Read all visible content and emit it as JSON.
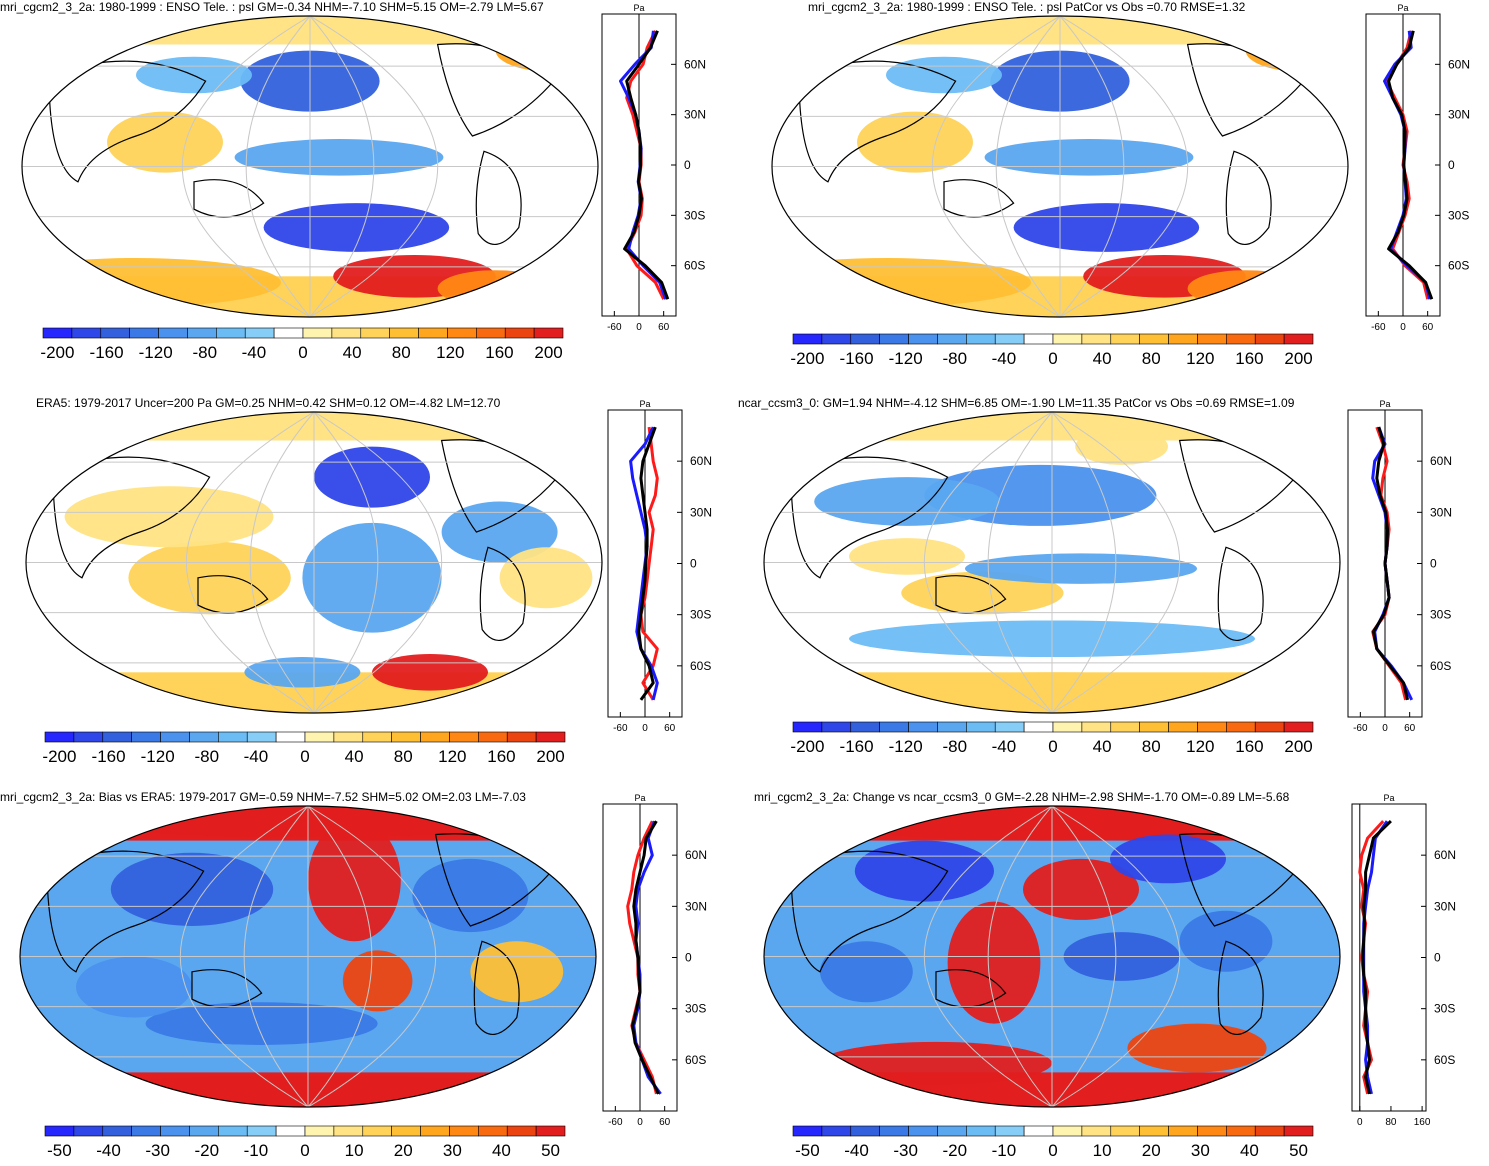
{
  "colors": {
    "scale": [
      "#2626ff",
      "#2f46e8",
      "#3361dd",
      "#3a79e6",
      "#4b91ee",
      "#5aa7f0",
      "#6bbcf5",
      "#86cdf7",
      "#ffffff",
      "#fff3b0",
      "#ffe384",
      "#ffd35a",
      "#ffbf35",
      "#ffa51e",
      "#ff8714",
      "#f96a10",
      "#ec4410",
      "#e21e1e"
    ],
    "land": "#000000",
    "grid": "#c8c8c8",
    "model_line": "#ff1a1a",
    "obs_line": "#1a1aff",
    "ref_line": "#000000"
  },
  "chart_data": [
    {
      "type": "heatmap",
      "title": "mri_cgcm2_3_2a: 1980-1999 : ENSO Tele. : psl GM=-0.34 NHM=-7.10 SHM=5.15 OM=-2.79 LM=5.67",
      "colorbar_ticks": [
        "-200",
        "-160",
        "-120",
        "-80",
        "-40",
        "0",
        "40",
        "80",
        "120",
        "160",
        "200"
      ],
      "profile_unit": "Pa",
      "profile_yticks": [
        "60N",
        "30N",
        "0",
        "30S",
        "60S"
      ],
      "profile_xticks": [
        "-60",
        "0",
        "60"
      ],
      "profile_xlim": [
        -90,
        90
      ],
      "latitudes": [
        80,
        70,
        60,
        50,
        40,
        30,
        20,
        10,
        0,
        -10,
        -20,
        -30,
        -40,
        -50,
        -60,
        -70,
        -80
      ],
      "series": [
        {
          "name": "model",
          "values": [
            40,
            20,
            10,
            -20,
            -30,
            -15,
            -5,
            5,
            5,
            0,
            8,
            5,
            -10,
            -30,
            -5,
            40,
            60
          ]
        },
        {
          "name": "obs",
          "values": [
            35,
            30,
            -10,
            -45,
            -25,
            -8,
            0,
            5,
            3,
            -2,
            5,
            -2,
            -15,
            -25,
            10,
            50,
            65
          ]
        },
        {
          "name": "reference",
          "values": [
            45,
            28,
            0,
            -30,
            -20,
            -8,
            0,
            4,
            4,
            -1,
            6,
            0,
            -12,
            -35,
            15,
            55,
            70
          ]
        }
      ]
    },
    {
      "type": "heatmap",
      "title": "mri_cgcm2_3_2a: 1980-1999 : ENSO Tele. : psl PatCor vs Obs =0.70 RMSE=1.32",
      "colorbar_ticks": [
        "-200",
        "-160",
        "-120",
        "-80",
        "-40",
        "0",
        "40",
        "80",
        "120",
        "160",
        "200"
      ],
      "profile_unit": "Pa",
      "profile_yticks": [
        "60N",
        "30N",
        "0",
        "30S",
        "60S"
      ],
      "profile_xticks": [
        "-60",
        "0",
        "60"
      ],
      "profile_xlim": [
        -90,
        90
      ],
      "latitudes": [
        80,
        70,
        60,
        50,
        40,
        30,
        20,
        10,
        0,
        -10,
        -20,
        -30,
        -40,
        -50,
        -60,
        -70,
        -80
      ],
      "series": [
        {
          "name": "model",
          "values": [
            20,
            10,
            -15,
            -40,
            -20,
            0,
            10,
            5,
            0,
            10,
            15,
            5,
            -10,
            -25,
            5,
            50,
            60
          ]
        },
        {
          "name": "obs",
          "values": [
            15,
            20,
            -20,
            -45,
            -25,
            -5,
            5,
            5,
            2,
            5,
            8,
            0,
            -15,
            -30,
            10,
            55,
            65
          ]
        },
        {
          "name": "reference",
          "values": [
            25,
            15,
            -15,
            -35,
            -25,
            -3,
            5,
            4,
            2,
            6,
            10,
            2,
            -12,
            -35,
            15,
            55,
            70
          ]
        }
      ]
    },
    {
      "type": "heatmap",
      "title": "ERA5: 1979-2017 Uncer=200 Pa GM=0.25 NHM=0.42 SHM=0.12 OM=-4.82 LM=12.70",
      "colorbar_ticks": [
        "-200",
        "-160",
        "-120",
        "-80",
        "-40",
        "0",
        "40",
        "80",
        "120",
        "160",
        "200"
      ],
      "profile_unit": "Pa",
      "profile_yticks": [
        "60N",
        "30N",
        "0",
        "30S",
        "60S"
      ],
      "profile_xticks": [
        "-60",
        "0",
        "60"
      ],
      "profile_xlim": [
        -90,
        90
      ],
      "latitudes": [
        80,
        70,
        60,
        50,
        40,
        30,
        20,
        10,
        0,
        -10,
        -20,
        -30,
        -40,
        -50,
        -60,
        -70,
        -80
      ],
      "series": [
        {
          "name": "model",
          "values": [
            10,
            15,
            20,
            30,
            25,
            10,
            20,
            15,
            10,
            5,
            0,
            -10,
            -5,
            30,
            20,
            -5,
            20
          ]
        },
        {
          "name": "obs",
          "values": [
            20,
            0,
            -35,
            -30,
            -20,
            -10,
            0,
            5,
            0,
            -5,
            -10,
            -15,
            -20,
            -10,
            15,
            30,
            20
          ]
        },
        {
          "name": "reference",
          "values": [
            25,
            10,
            -5,
            -10,
            -5,
            0,
            5,
            5,
            2,
            0,
            -5,
            -10,
            -15,
            -10,
            10,
            20,
            -10
          ]
        }
      ]
    },
    {
      "type": "heatmap",
      "title": "ncar_ccsm3_0: GM=1.94 NHM=-4.12 SHM=6.85 OM=-1.90 LM=11.35 PatCor vs Obs =0.69 RMSE=1.09",
      "colorbar_ticks": [
        "-200",
        "-160",
        "-120",
        "-80",
        "-40",
        "0",
        "40",
        "80",
        "120",
        "160",
        "200"
      ],
      "profile_unit": "Pa",
      "profile_yticks": [
        "60N",
        "30N",
        "0",
        "30S",
        "60S"
      ],
      "profile_xticks": [
        "-60",
        "0",
        "60"
      ],
      "profile_xlim": [
        -90,
        90
      ],
      "latitudes": [
        80,
        70,
        60,
        50,
        40,
        30,
        20,
        10,
        0,
        -10,
        -20,
        -30,
        -40,
        -50,
        -60,
        -70,
        -80
      ],
      "series": [
        {
          "name": "model",
          "values": [
            -20,
            -5,
            5,
            -5,
            -10,
            5,
            10,
            5,
            0,
            5,
            10,
            0,
            -30,
            -20,
            10,
            40,
            50
          ]
        },
        {
          "name": "obs",
          "values": [
            -15,
            0,
            -25,
            -30,
            -15,
            0,
            5,
            5,
            0,
            5,
            10,
            -5,
            -25,
            -20,
            15,
            45,
            65
          ]
        },
        {
          "name": "reference",
          "values": [
            -15,
            -3,
            -15,
            -20,
            -12,
            2,
            6,
            5,
            0,
            5,
            10,
            -3,
            -28,
            -20,
            12,
            45,
            55
          ]
        }
      ]
    },
    {
      "type": "heatmap",
      "title": "mri_cgcm2_3_2a: Bias vs ERA5: 1979-2017 GM=-0.59 NHM=-7.52 SHM=5.02 OM=2.03 LM=-7.03",
      "colorbar_ticks": [
        "-50",
        "-40",
        "-30",
        "-20",
        "-10",
        "0",
        "10",
        "20",
        "30",
        "40",
        "50"
      ],
      "profile_unit": "Pa",
      "profile_yticks": [
        "60N",
        "30N",
        "0",
        "30S",
        "60S"
      ],
      "profile_xticks": [
        "-60",
        "0",
        "60"
      ],
      "profile_xlim": [
        -90,
        90
      ],
      "latitudes": [
        80,
        70,
        60,
        50,
        40,
        30,
        20,
        10,
        0,
        -10,
        -20,
        -30,
        -40,
        -50,
        -60,
        -70,
        -80
      ],
      "series": [
        {
          "name": "model",
          "values": [
            30,
            10,
            -5,
            -15,
            -20,
            -30,
            -25,
            -15,
            -5,
            -5,
            0,
            -10,
            -20,
            -10,
            10,
            30,
            40
          ]
        },
        {
          "name": "obs",
          "values": [
            35,
            20,
            30,
            10,
            -5,
            -10,
            -5,
            -10,
            -5,
            0,
            0,
            -5,
            -15,
            -10,
            5,
            20,
            50
          ]
        },
        {
          "name": "reference",
          "values": [
            40,
            15,
            10,
            0,
            -10,
            -15,
            -10,
            -10,
            -5,
            -3,
            0,
            -8,
            -18,
            -12,
            5,
            25,
            45
          ]
        }
      ]
    },
    {
      "type": "heatmap",
      "title": "mri_cgcm2_3_2a: Change vs ncar_ccsm3_0 GM=-2.28 NHM=-2.98 SHM=-1.70 OM=-0.89 LM=-5.68",
      "colorbar_ticks": [
        "-50",
        "-40",
        "-30",
        "-20",
        "-10",
        "0",
        "10",
        "20",
        "30",
        "40",
        "50"
      ],
      "profile_unit": "Pa",
      "profile_yticks": [
        "60N",
        "30N",
        "0",
        "30S",
        "60S"
      ],
      "profile_xticks": [
        "0",
        "80",
        "160"
      ],
      "profile_xlim": [
        -20,
        170
      ],
      "latitudes": [
        80,
        70,
        60,
        50,
        40,
        30,
        20,
        10,
        0,
        -10,
        -20,
        -30,
        -40,
        -50,
        -60,
        -70,
        -80
      ],
      "series": [
        {
          "name": "model",
          "values": [
            60,
            20,
            5,
            0,
            10,
            5,
            15,
            10,
            5,
            10,
            20,
            15,
            10,
            20,
            30,
            10,
            20
          ]
        },
        {
          "name": "obs",
          "values": [
            70,
            40,
            35,
            30,
            20,
            15,
            10,
            10,
            10,
            10,
            10,
            15,
            20,
            20,
            15,
            20,
            30
          ]
        },
        {
          "name": "reference",
          "values": [
            80,
            35,
            25,
            15,
            15,
            10,
            12,
            10,
            8,
            10,
            15,
            15,
            15,
            20,
            25,
            15,
            25
          ]
        }
      ]
    }
  ]
}
